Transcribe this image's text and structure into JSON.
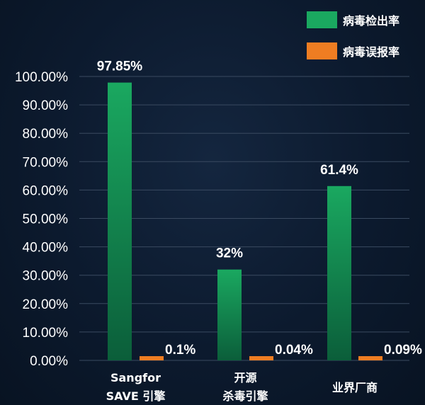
{
  "chart_data": {
    "type": "bar",
    "categories": [
      [
        "Sangfor",
        "SAVE 引擎"
      ],
      [
        "开源",
        "杀毒引擎"
      ],
      [
        "业界厂商"
      ]
    ],
    "series": [
      {
        "name": "病毒检出率",
        "values": [
          97.85,
          32,
          61.4
        ],
        "data_labels": [
          "97.85%",
          "32%",
          "61.4%"
        ],
        "color": "#1aa860",
        "color_dark": "#0b5e3a"
      },
      {
        "name": "病毒误报率",
        "values": [
          0.1,
          0.04,
          0.09
        ],
        "data_labels": [
          "0.1%",
          "0.04%",
          "0.09%"
        ],
        "color": "#ef7d22"
      }
    ],
    "yticks": [
      "0.00%",
      "10.00%",
      "20.00%",
      "30.00%",
      "40.00%",
      "50.00%",
      "60.00%",
      "70.00%",
      "80.00%",
      "90.00%",
      "100.00%"
    ],
    "ylim": [
      0,
      100
    ],
    "grid": true,
    "legend_position": "top-right",
    "title": "",
    "xlabel": "",
    "ylabel": ""
  }
}
